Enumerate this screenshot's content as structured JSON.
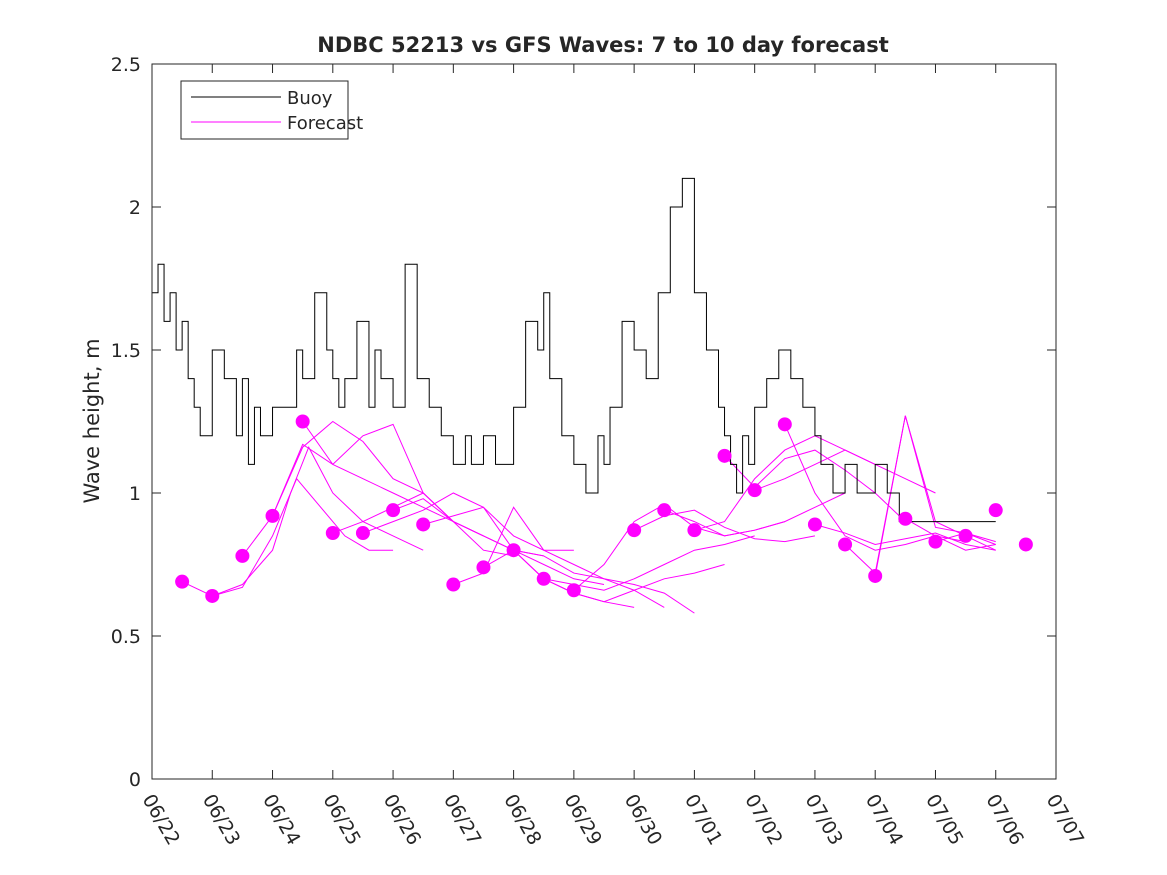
{
  "chart_data": {
    "type": "line",
    "title": "NDBC 52213 vs GFS Waves: 7 to 10 day forecast",
    "xlabel": "",
    "ylabel": "Wave height, m",
    "xlim": [
      "06/22",
      "07/07"
    ],
    "ylim": [
      0,
      2.5
    ],
    "x_ticks": [
      "06/22",
      "06/23",
      "06/24",
      "06/25",
      "06/26",
      "06/27",
      "06/28",
      "06/29",
      "06/30",
      "07/01",
      "07/02",
      "07/03",
      "07/04",
      "07/05",
      "07/06",
      "07/07"
    ],
    "y_ticks": [
      "0",
      "0.5",
      "1",
      "1.5",
      "2",
      "2.5"
    ],
    "grid": false,
    "legend": {
      "placement": "top-left",
      "entries": [
        {
          "name": "Buoy",
          "color": "#000000"
        },
        {
          "name": "Forecast",
          "color": "#ff00ff"
        }
      ]
    },
    "buoy_color": "#000000",
    "forecast_color": "#ff00ff",
    "buoy_series": {
      "name": "Buoy",
      "x_day_offset": [
        0,
        0.1,
        0.2,
        0.3,
        0.4,
        0.5,
        0.6,
        0.7,
        0.8,
        1.0,
        1.2,
        1.4,
        1.5,
        1.6,
        1.7,
        1.8,
        2.0,
        2.2,
        2.4,
        2.5,
        2.7,
        2.9,
        3.0,
        3.1,
        3.2,
        3.4,
        3.6,
        3.7,
        3.8,
        4.0,
        4.2,
        4.4,
        4.6,
        4.8,
        5.0,
        5.2,
        5.3,
        5.5,
        5.7,
        6.0,
        6.2,
        6.4,
        6.5,
        6.6,
        6.8,
        7.0,
        7.2,
        7.4,
        7.5,
        7.6,
        7.8,
        8.0,
        8.2,
        8.4,
        8.6,
        8.8,
        9.0,
        9.2,
        9.4,
        9.5,
        9.6,
        9.7,
        9.8,
        9.9,
        10.0,
        10.2,
        10.4,
        10.6,
        10.8,
        11.0,
        11.1,
        11.3,
        11.5,
        11.7,
        12.0,
        12.2,
        12.4,
        12.6,
        12.8,
        13.0,
        13.2,
        13.4,
        13.6,
        13.8,
        14.0
      ],
      "values": [
        1.7,
        1.8,
        1.6,
        1.7,
        1.5,
        1.6,
        1.4,
        1.3,
        1.2,
        1.5,
        1.4,
        1.2,
        1.4,
        1.1,
        1.3,
        1.2,
        1.3,
        1.3,
        1.5,
        1.4,
        1.7,
        1.5,
        1.4,
        1.3,
        1.4,
        1.6,
        1.3,
        1.5,
        1.4,
        1.3,
        1.8,
        1.4,
        1.3,
        1.2,
        1.1,
        1.2,
        1.1,
        1.2,
        1.1,
        1.3,
        1.6,
        1.5,
        1.7,
        1.4,
        1.2,
        1.1,
        1.0,
        1.2,
        1.1,
        1.3,
        1.6,
        1.5,
        1.4,
        1.7,
        2.0,
        2.1,
        1.7,
        1.5,
        1.3,
        1.2,
        1.1,
        1.0,
        1.2,
        1.1,
        1.3,
        1.4,
        1.5,
        1.4,
        1.3,
        1.2,
        1.1,
        1.0,
        1.1,
        1.0,
        1.1,
        1.0,
        0.9,
        0.9,
        0.9,
        0.9,
        0.9,
        0.9,
        0.9,
        0.9,
        0.9
      ]
    },
    "forecast_lines": [
      {
        "x_day_offset": [
          0.5,
          1.0,
          1.5,
          2.0,
          2.4,
          2.8,
          3.2,
          3.6,
          4.0
        ],
        "values": [
          0.69,
          0.64,
          0.67,
          0.85,
          1.05,
          0.95,
          0.85,
          0.8,
          0.8
        ]
      },
      {
        "x_day_offset": [
          1.0,
          1.5,
          2.0,
          2.3,
          2.6,
          3.0,
          3.5,
          4.0,
          4.5
        ],
        "values": [
          0.64,
          0.68,
          0.8,
          1.0,
          1.16,
          1.0,
          0.9,
          0.85,
          0.8
        ]
      },
      {
        "x_day_offset": [
          1.5,
          2.0,
          2.5,
          3.0,
          3.5,
          4.0,
          4.5,
          5.0
        ],
        "values": [
          0.78,
          0.92,
          1.17,
          1.1,
          1.05,
          1.0,
          0.95,
          0.9
        ]
      },
      {
        "x_day_offset": [
          2.0,
          2.5,
          3.0,
          3.5,
          4.0,
          4.5,
          5.0,
          5.5
        ],
        "values": [
          0.92,
          1.16,
          1.25,
          1.18,
          1.05,
          1.0,
          0.9,
          0.85
        ]
      },
      {
        "x_day_offset": [
          2.5,
          3.0,
          3.5,
          4.0,
          4.5,
          5.0,
          5.5,
          6.0
        ],
        "values": [
          1.25,
          1.1,
          1.2,
          1.24,
          1.0,
          0.9,
          0.8,
          0.78
        ]
      },
      {
        "x_day_offset": [
          3.0,
          3.5,
          4.0,
          4.5,
          5.0,
          5.5,
          6.0,
          6.5
        ],
        "values": [
          0.86,
          0.9,
          0.95,
          1.0,
          0.9,
          0.85,
          0.8,
          0.78
        ]
      },
      {
        "x_day_offset": [
          3.5,
          4.0,
          4.5,
          5.0,
          5.5,
          6.0,
          6.5,
          7.0
        ],
        "values": [
          0.86,
          0.9,
          0.94,
          1.0,
          0.95,
          0.85,
          0.8,
          0.8
        ]
      },
      {
        "x_day_offset": [
          4.0,
          4.5,
          5.0,
          5.5,
          6.0,
          6.5,
          7.0,
          7.5
        ],
        "values": [
          0.94,
          0.98,
          0.9,
          0.85,
          0.8,
          0.75,
          0.7,
          0.68
        ]
      },
      {
        "x_day_offset": [
          4.5,
          5.0,
          5.5,
          6.0,
          6.5,
          7.0,
          7.5,
          8.0
        ],
        "values": [
          0.89,
          0.92,
          0.95,
          0.8,
          0.7,
          0.65,
          0.62,
          0.6
        ]
      },
      {
        "x_day_offset": [
          5.0,
          5.5,
          6.0,
          6.5,
          7.0,
          7.5,
          8.0,
          8.5
        ],
        "values": [
          0.68,
          0.72,
          0.95,
          0.8,
          0.75,
          0.7,
          0.66,
          0.6
        ]
      },
      {
        "x_day_offset": [
          5.5,
          6.0,
          6.5,
          7.0,
          7.5,
          8.0,
          8.5,
          9.0
        ],
        "values": [
          0.74,
          0.8,
          0.78,
          0.72,
          0.7,
          0.68,
          0.65,
          0.58
        ]
      },
      {
        "x_day_offset": [
          6.0,
          6.5,
          7.0,
          7.5,
          8.0,
          8.5,
          9.0,
          9.5
        ],
        "values": [
          0.8,
          0.7,
          0.65,
          0.62,
          0.66,
          0.7,
          0.72,
          0.75
        ]
      },
      {
        "x_day_offset": [
          6.5,
          7.0,
          7.5,
          8.0,
          8.5,
          9.0,
          9.5,
          10.0
        ],
        "values": [
          0.7,
          0.68,
          0.66,
          0.7,
          0.75,
          0.8,
          0.82,
          0.85
        ]
      },
      {
        "x_day_offset": [
          7.0,
          7.5,
          8.0,
          8.5,
          9.0,
          9.5,
          10.0,
          10.5
        ],
        "values": [
          0.66,
          0.75,
          0.9,
          0.96,
          0.88,
          0.85,
          0.87,
          0.9
        ]
      },
      {
        "x_day_offset": [
          8.0,
          8.5,
          9.0,
          9.5,
          10.0,
          10.5,
          11.0
        ],
        "values": [
          0.87,
          0.92,
          0.94,
          0.88,
          0.84,
          0.83,
          0.85
        ]
      },
      {
        "x_day_offset": [
          8.5,
          9.0,
          9.5,
          10.0,
          10.5,
          11.0,
          11.5
        ],
        "values": [
          0.94,
          0.9,
          0.85,
          0.87,
          0.9,
          0.95,
          1.0
        ]
      },
      {
        "x_day_offset": [
          9.0,
          9.5,
          10.0,
          10.5,
          11.0,
          11.5,
          12.0
        ],
        "values": [
          0.87,
          0.9,
          1.05,
          1.15,
          1.2,
          1.15,
          1.1
        ]
      },
      {
        "x_day_offset": [
          9.5,
          10.0,
          10.5,
          11.0,
          11.5,
          12.0,
          12.5
        ],
        "values": [
          1.13,
          1.02,
          1.12,
          1.15,
          1.08,
          1.0,
          0.9
        ]
      },
      {
        "x_day_offset": [
          10.0,
          10.5,
          11.0,
          11.5,
          12.0,
          12.5,
          13.0
        ],
        "values": [
          1.01,
          1.05,
          1.1,
          1.15,
          1.1,
          1.05,
          1.0
        ]
      },
      {
        "x_day_offset": [
          10.5,
          11.0,
          11.5,
          12.0,
          12.5,
          13.0,
          13.5
        ],
        "values": [
          1.24,
          1.0,
          0.85,
          0.8,
          0.82,
          0.85,
          0.83
        ]
      },
      {
        "x_day_offset": [
          11.0,
          11.5,
          12.0,
          12.5,
          13.0,
          13.5,
          14.0
        ],
        "values": [
          0.89,
          0.86,
          0.82,
          0.84,
          0.86,
          0.82,
          0.8
        ]
      },
      {
        "x_day_offset": [
          11.5,
          12.0,
          12.5,
          13.0,
          13.5,
          14.0
        ],
        "values": [
          0.82,
          0.72,
          1.27,
          0.9,
          0.85,
          0.8
        ]
      },
      {
        "x_day_offset": [
          12.0,
          12.5,
          13.0,
          13.5,
          14.0
        ],
        "values": [
          0.71,
          1.27,
          0.88,
          0.86,
          0.83
        ]
      },
      {
        "x_day_offset": [
          12.5,
          13.0,
          13.5,
          14.0
        ],
        "values": [
          0.91,
          0.85,
          0.8,
          0.82
        ]
      },
      {
        "x_day_offset": [
          13.0,
          13.5,
          14.0
        ],
        "values": [
          0.83,
          0.86,
          0.82
        ]
      }
    ],
    "forecast_points": {
      "x_day_offset": [
        0.5,
        1.0,
        1.5,
        2.0,
        2.5,
        3.0,
        3.5,
        4.0,
        4.5,
        5.0,
        5.5,
        6.0,
        6.5,
        7.0,
        8.0,
        8.5,
        9.0,
        9.5,
        10.0,
        10.5,
        11.0,
        11.5,
        12.0,
        12.5,
        13.0,
        13.5,
        14.0,
        14.5
      ],
      "values": [
        0.69,
        0.64,
        0.78,
        0.92,
        1.25,
        0.86,
        0.86,
        0.94,
        0.89,
        0.68,
        0.74,
        0.8,
        0.7,
        0.66,
        0.87,
        0.94,
        0.87,
        1.13,
        1.01,
        1.24,
        0.89,
        0.82,
        0.71,
        0.91,
        0.83,
        0.85,
        0.94,
        0.82
      ]
    }
  }
}
